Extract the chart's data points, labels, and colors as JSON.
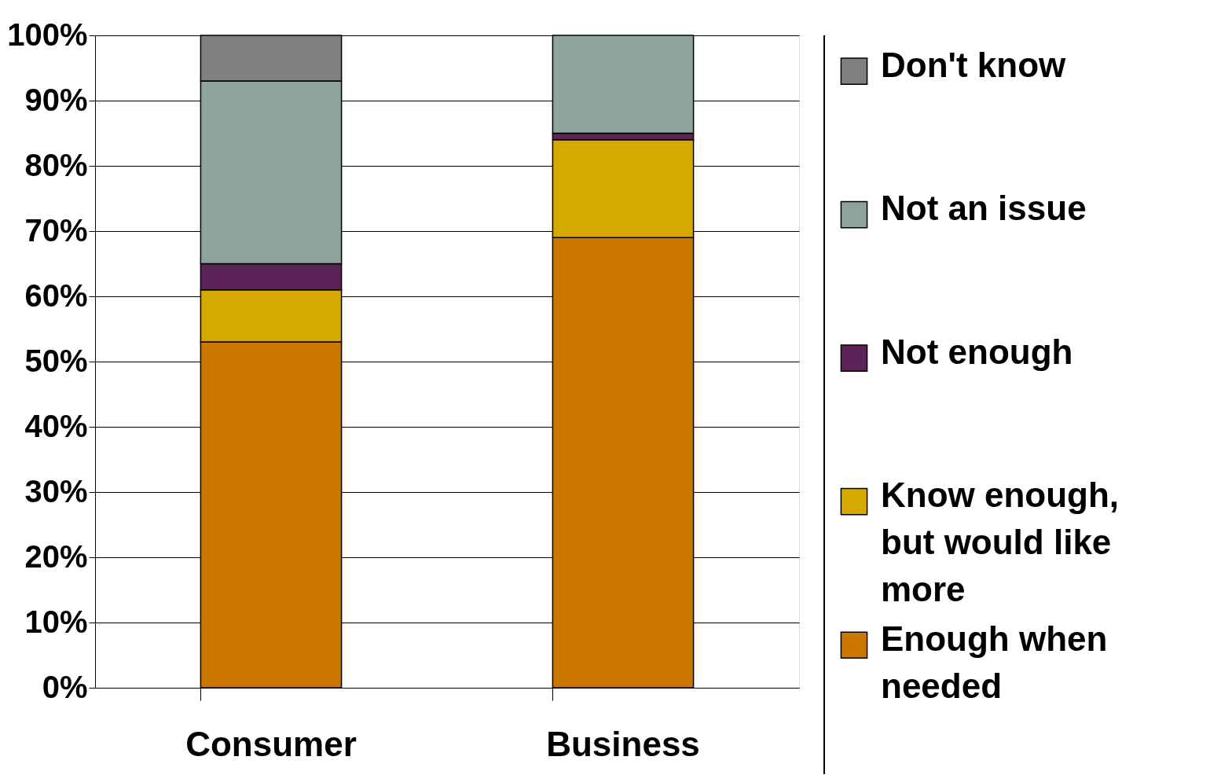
{
  "chart_data": {
    "type": "bar",
    "stacked": true,
    "categories": [
      "Consumer",
      "Business"
    ],
    "series": [
      {
        "name": "Enough when needed",
        "color": "#cc7700",
        "values": [
          53,
          69
        ]
      },
      {
        "name": "Know enough, but would like more",
        "color": "#d5a900",
        "values": [
          8,
          15
        ]
      },
      {
        "name": "Not enough",
        "color": "#5b2357",
        "values": [
          4,
          1
        ]
      },
      {
        "name": "Not an issue",
        "color": "#8da39b",
        "values": [
          28,
          15
        ]
      },
      {
        "name": "Don't know",
        "color": "#808080",
        "values": [
          7,
          null
        ]
      }
    ],
    "ylim": [
      0,
      100
    ],
    "yticks": [
      {
        "value": 0,
        "label": "0%"
      },
      {
        "value": 10,
        "label": "10%"
      },
      {
        "value": 20,
        "label": "20%"
      },
      {
        "value": 30,
        "label": "30%"
      },
      {
        "value": 40,
        "label": "40%"
      },
      {
        "value": 50,
        "label": "50%"
      },
      {
        "value": 60,
        "label": "60%"
      },
      {
        "value": 70,
        "label": "70%"
      },
      {
        "value": 80,
        "label": "80%"
      },
      {
        "value": 90,
        "label": "90%"
      },
      {
        "value": 100,
        "label": "100%"
      }
    ],
    "grid": "y",
    "legend": "right"
  }
}
